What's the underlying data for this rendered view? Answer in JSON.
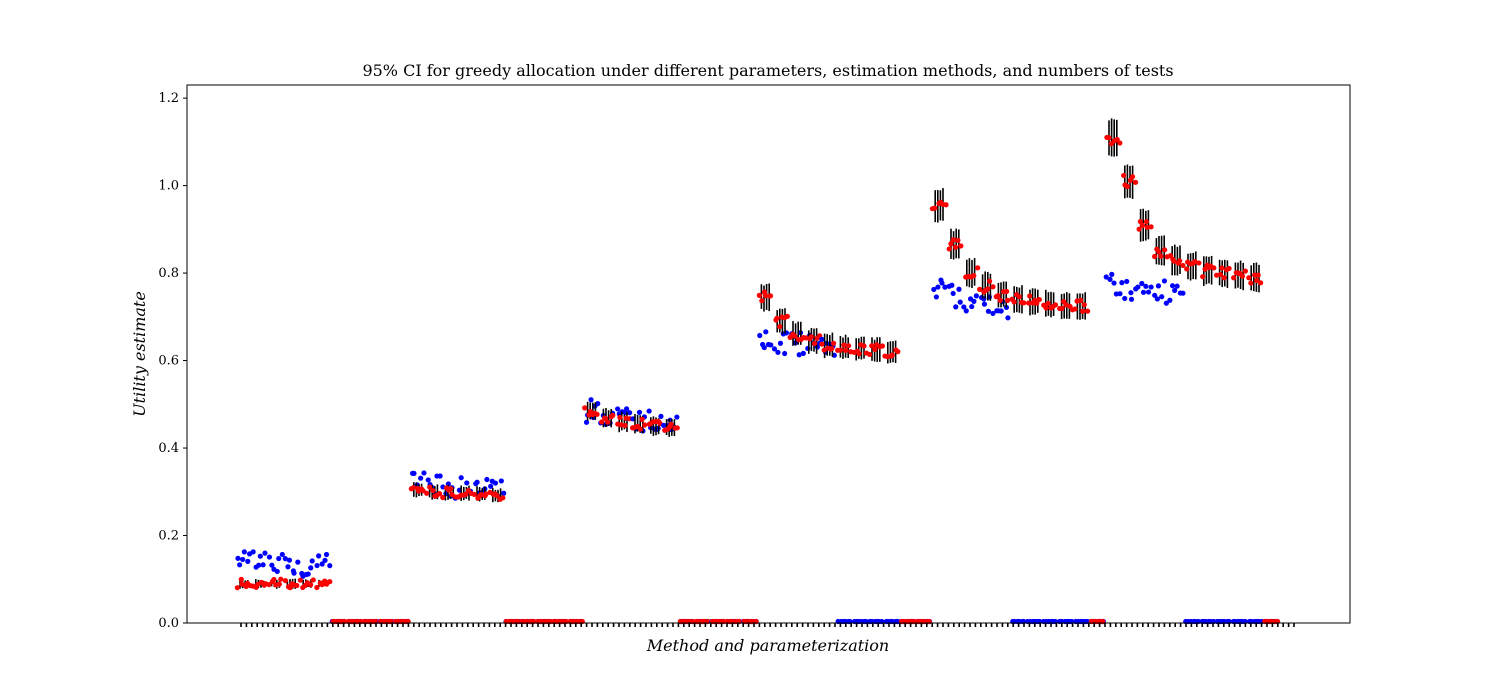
{
  "chart_data": {
    "type": "scatter",
    "title": "95% CI for greedy allocation under different parameters, estimation methods, and numbers of tests",
    "xlabel": "Method and parameterization",
    "ylabel": "Utility estimate",
    "ylim": [
      0.0,
      1.23
    ],
    "yticks": [
      "0.0",
      "0.2",
      "0.4",
      "0.6",
      "0.8",
      "1.0",
      "1.2"
    ],
    "xtick_labels": "none",
    "grid": false,
    "legend": "none",
    "colors": {
      "blue": "#0000ff",
      "red": "#ff0000",
      "ci": "#000000"
    },
    "series": [
      {
        "color": "blue",
        "values": [
          0.145,
          0.14,
          0.135,
          0.13,
          0.13,
          0.135,
          0.0,
          0.0,
          0.0,
          0.0,
          0.0,
          0.32,
          0.315,
          0.31,
          0.31,
          0.31,
          0.31,
          0.0,
          0.0,
          0.0,
          0.0,
          0.0,
          0.485,
          0.475,
          0.47,
          0.465,
          0.465,
          0.46,
          0.0,
          0.0,
          0.0,
          0.0,
          0.0,
          0.645,
          0.64,
          0.64,
          0.635,
          0.635,
          0.0,
          0.0,
          0.0,
          0.0,
          0.0,
          0.0,
          0.76,
          0.745,
          0.74,
          0.73,
          0.725,
          0.0,
          0.0,
          0.0,
          0.0,
          0.0,
          0.0,
          0.78,
          0.765,
          0.755,
          0.755,
          0.755,
          0.0,
          0.0,
          0.0,
          0.0,
          0.0,
          0.0
        ]
      },
      {
        "color": "red",
        "values": [
          0.09,
          0.09,
          0.09,
          0.09,
          0.09,
          0.09,
          0.0,
          0.0,
          0.0,
          0.0,
          0.0,
          0.305,
          0.3,
          0.298,
          0.296,
          0.295,
          0.292,
          0.0,
          0.0,
          0.0,
          0.0,
          0.0,
          0.485,
          0.468,
          0.46,
          0.455,
          0.45,
          0.448,
          0.0,
          0.0,
          0.0,
          0.0,
          0.0,
          0.745,
          0.69,
          0.66,
          0.645,
          0.635,
          0.63,
          0.628,
          0.625,
          0.62,
          0.0,
          0.0,
          0.955,
          0.865,
          0.8,
          0.77,
          0.75,
          0.74,
          0.735,
          0.73,
          0.725,
          0.725,
          0.0,
          1.11,
          1.01,
          0.91,
          0.85,
          0.83,
          0.815,
          0.805,
          0.8,
          0.795,
          0.79,
          0.0
        ]
      }
    ]
  }
}
